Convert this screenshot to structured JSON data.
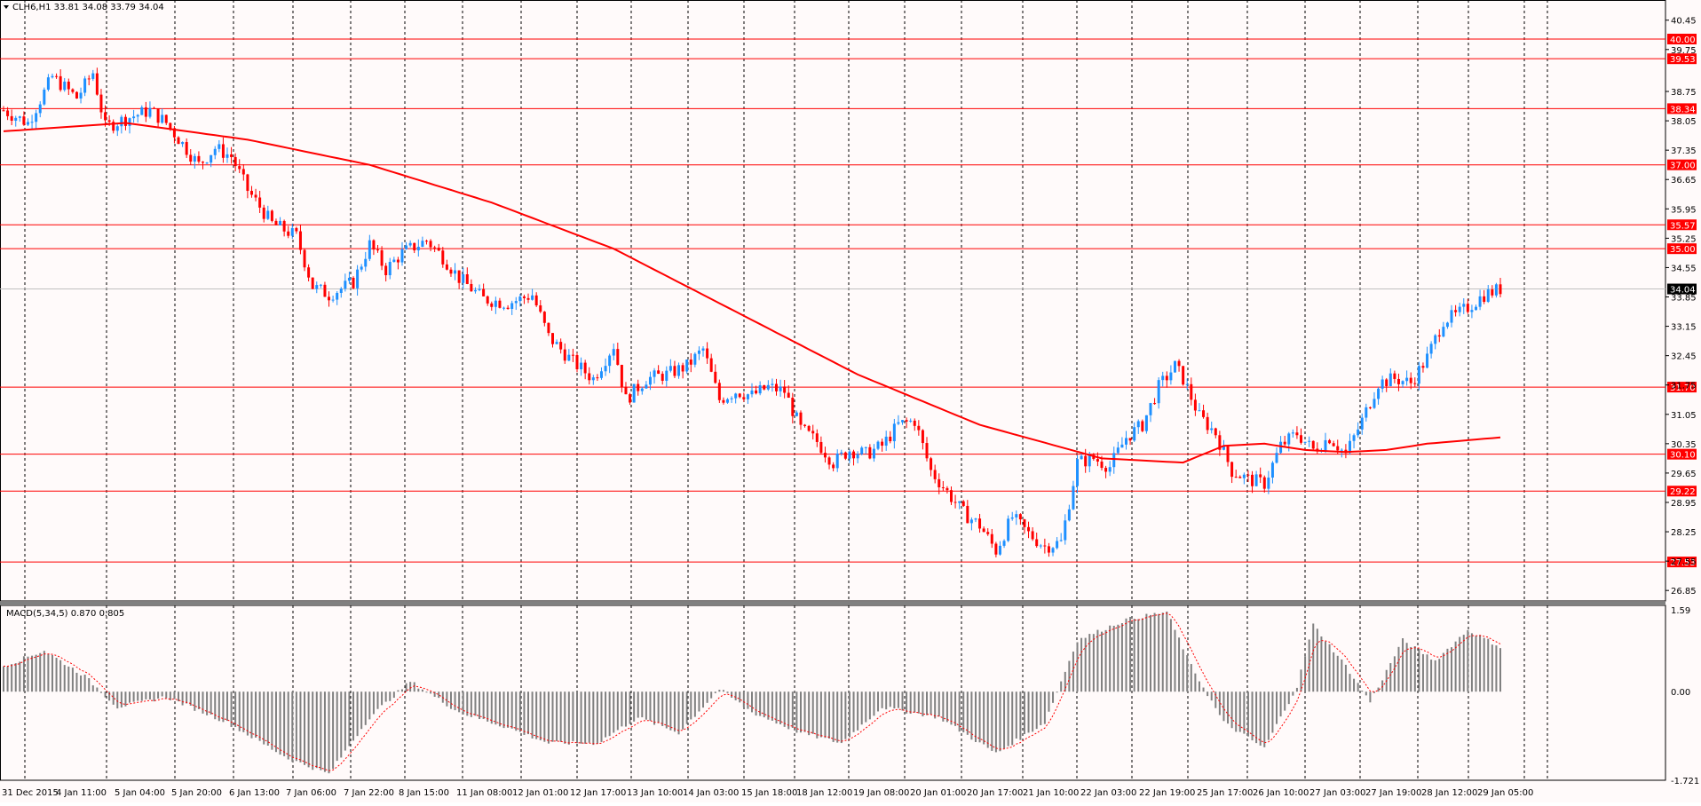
{
  "main": {
    "symbol_header": "CLH6,H1  33.81 34.08 33.79 34.04",
    "current_price": "34.04",
    "y_ticks": [
      "40.45",
      "39.75",
      "38.75",
      "38.05",
      "37.35",
      "36.65",
      "35.95",
      "35.25",
      "34.55",
      "33.85",
      "33.15",
      "32.45",
      "31.75",
      "31.05",
      "30.35",
      "29.65",
      "28.95",
      "28.25",
      "27.55",
      "26.85"
    ],
    "levels": [
      {
        "label": "40.00",
        "value": 40.0
      },
      {
        "label": "39.53",
        "value": 39.53
      },
      {
        "label": "38.34",
        "value": 38.34
      },
      {
        "label": "37.00",
        "value": 37.0
      },
      {
        "label": "35.57",
        "value": 35.57
      },
      {
        "label": "35.00",
        "value": 35.0
      },
      {
        "label": "31.70",
        "value": 31.7
      },
      {
        "label": "30.10",
        "value": 30.1
      },
      {
        "label": "29.22",
        "value": 29.22
      },
      {
        "label": "27.53",
        "value": 27.53
      }
    ],
    "price_range": [
      26.6,
      40.55
    ]
  },
  "macd": {
    "label": "MACD(5,34,5) 0.870 0.805",
    "y_ticks": [
      "1.59",
      "0.00",
      "-1.721"
    ],
    "range": [
      -1.721,
      1.59
    ]
  },
  "x_labels": [
    "31 Dec 2015",
    "4 Jan 11:00",
    "5 Jan 04:00",
    "5 Jan 20:00",
    "6 Jan 13:00",
    "7 Jan 06:00",
    "7 Jan 22:00",
    "8 Jan 15:00",
    "11 Jan 08:00",
    "12 Jan 01:00",
    "12 Jan 17:00",
    "13 Jan 10:00",
    "14 Jan 03:00",
    "15 Jan 18:00",
    "18 Jan 12:00",
    "19 Jan 08:00",
    "20 Jan 01:00",
    "20 Jan 17:00",
    "21 Jan 10:00",
    "22 Jan 03:00",
    "22 Jan 19:00",
    "25 Jan 17:00",
    "26 Jan 10:00",
    "27 Jan 03:00",
    "27 Jan 19:00",
    "28 Jan 12:00",
    "29 Jan 05:00"
  ],
  "colors": {
    "up": "#1e90ff",
    "down": "#ff0000",
    "ma": "#ff0000",
    "level": "#ff0000",
    "grid": "#000000",
    "macd_bar": "#808080",
    "signal": "#ff0000",
    "bg": "#fffafa"
  },
  "chart_data": {
    "type": "candlestick",
    "symbol": "CLH6",
    "timeframe": "H1",
    "ohlc_last": {
      "open": 33.81,
      "high": 34.08,
      "low": 33.79,
      "close": 34.04
    },
    "close_path": [
      [
        0,
        38.3
      ],
      [
        6,
        38.0
      ],
      [
        12,
        39.1
      ],
      [
        18,
        38.6
      ],
      [
        22,
        39.2
      ],
      [
        25,
        37.9
      ],
      [
        30,
        38.1
      ],
      [
        36,
        38.3
      ],
      [
        40,
        38.0
      ],
      [
        44,
        37.5
      ],
      [
        48,
        37.0
      ],
      [
        52,
        37.4
      ],
      [
        56,
        37.2
      ],
      [
        60,
        36.4
      ],
      [
        66,
        35.6
      ],
      [
        72,
        35.3
      ],
      [
        76,
        34.1
      ],
      [
        80,
        33.9
      ],
      [
        86,
        34.2
      ],
      [
        90,
        35.1
      ],
      [
        94,
        34.5
      ],
      [
        98,
        34.9
      ],
      [
        104,
        35.2
      ],
      [
        108,
        34.8
      ],
      [
        112,
        34.3
      ],
      [
        118,
        33.8
      ],
      [
        124,
        33.7
      ],
      [
        130,
        33.9
      ],
      [
        134,
        32.9
      ],
      [
        140,
        32.3
      ],
      [
        145,
        31.9
      ],
      [
        150,
        32.7
      ],
      [
        153,
        31.4
      ],
      [
        158,
        31.9
      ],
      [
        163,
        32.0
      ],
      [
        168,
        32.2
      ],
      [
        172,
        32.6
      ],
      [
        176,
        31.4
      ],
      [
        180,
        31.6
      ],
      [
        184,
        31.5
      ],
      [
        188,
        31.7
      ],
      [
        192,
        31.6
      ],
      [
        196,
        30.7
      ],
      [
        200,
        30.4
      ],
      [
        204,
        29.9
      ],
      [
        208,
        30.2
      ],
      [
        212,
        30.1
      ],
      [
        216,
        30.3
      ],
      [
        220,
        30.8
      ],
      [
        224,
        30.9
      ],
      [
        228,
        29.7
      ],
      [
        232,
        29.2
      ],
      [
        236,
        28.7
      ],
      [
        240,
        28.4
      ],
      [
        244,
        27.8
      ],
      [
        248,
        28.6
      ],
      [
        252,
        28.2
      ],
      [
        256,
        27.9
      ],
      [
        260,
        28.0
      ],
      [
        264,
        29.9
      ],
      [
        268,
        30.0
      ],
      [
        272,
        29.8
      ],
      [
        276,
        30.5
      ],
      [
        280,
        30.8
      ],
      [
        284,
        31.7
      ],
      [
        288,
        32.2
      ],
      [
        290,
        31.9
      ],
      [
        294,
        31.0
      ],
      [
        298,
        30.6
      ],
      [
        302,
        29.7
      ],
      [
        306,
        29.5
      ],
      [
        310,
        29.4
      ],
      [
        314,
        30.3
      ],
      [
        318,
        30.6
      ],
      [
        322,
        30.2
      ],
      [
        326,
        30.5
      ],
      [
        330,
        30.1
      ],
      [
        334,
        30.9
      ],
      [
        338,
        31.8
      ],
      [
        342,
        31.9
      ],
      [
        346,
        31.8
      ],
      [
        350,
        32.4
      ],
      [
        354,
        33.3
      ],
      [
        357,
        33.4
      ],
      [
        360,
        33.6
      ],
      [
        364,
        33.9
      ],
      [
        368,
        34.04
      ]
    ],
    "moving_average": [
      [
        0,
        37.8
      ],
      [
        30,
        38.0
      ],
      [
        60,
        37.6
      ],
      [
        90,
        37.0
      ],
      [
        120,
        36.1
      ],
      [
        150,
        35.0
      ],
      [
        180,
        33.5
      ],
      [
        210,
        32.0
      ],
      [
        240,
        30.8
      ],
      [
        255,
        30.4
      ],
      [
        270,
        30.0
      ],
      [
        290,
        29.9
      ],
      [
        300,
        30.3
      ],
      [
        310,
        30.35
      ],
      [
        320,
        30.2
      ],
      [
        330,
        30.15
      ],
      [
        340,
        30.2
      ],
      [
        350,
        30.35
      ],
      [
        368,
        30.5
      ]
    ],
    "macd_histogram": [
      [
        0,
        0.5
      ],
      [
        10,
        0.8
      ],
      [
        20,
        0.3
      ],
      [
        28,
        -0.3
      ],
      [
        40,
        -0.1
      ],
      [
        55,
        -0.6
      ],
      [
        70,
        -1.3
      ],
      [
        80,
        -1.6
      ],
      [
        90,
        -0.5
      ],
      [
        100,
        0.2
      ],
      [
        112,
        -0.4
      ],
      [
        124,
        -0.7
      ],
      [
        134,
        -1.0
      ],
      [
        146,
        -1.0
      ],
      [
        156,
        -0.5
      ],
      [
        166,
        -0.8
      ],
      [
        176,
        0.05
      ],
      [
        184,
        -0.4
      ],
      [
        196,
        -0.8
      ],
      [
        206,
        -1.0
      ],
      [
        216,
        -0.3
      ],
      [
        230,
        -0.5
      ],
      [
        244,
        -1.2
      ],
      [
        256,
        -0.6
      ],
      [
        264,
        1.0
      ],
      [
        276,
        1.4
      ],
      [
        286,
        1.55
      ],
      [
        292,
        0.5
      ],
      [
        300,
        -0.6
      ],
      [
        310,
        -1.1
      ],
      [
        318,
        0.1
      ],
      [
        322,
        1.3
      ],
      [
        330,
        0.5
      ],
      [
        336,
        -0.2
      ],
      [
        344,
        1.0
      ],
      [
        352,
        0.6
      ],
      [
        360,
        1.2
      ],
      [
        368,
        0.87
      ]
    ],
    "macd_value": 0.87,
    "signal_value": 0.805,
    "macd_range": [
      -1.721,
      1.59
    ]
  }
}
